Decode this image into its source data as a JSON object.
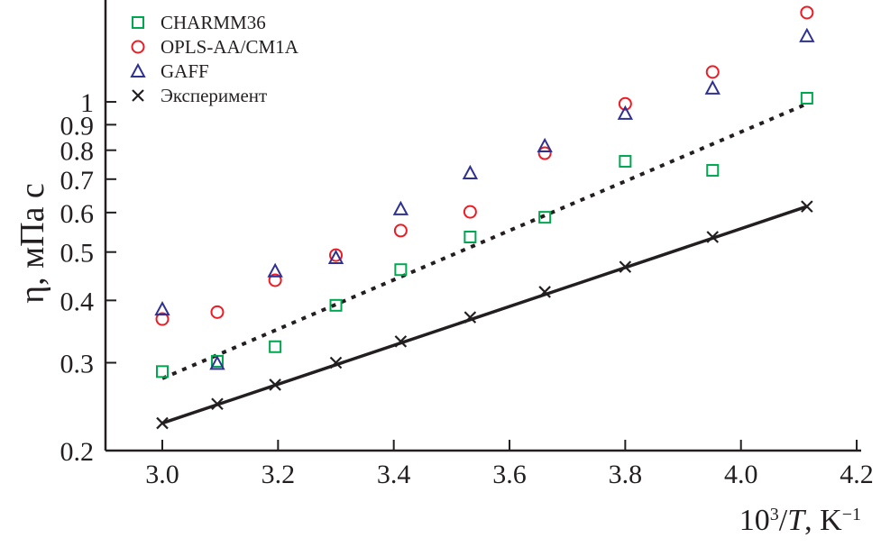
{
  "chart_data": {
    "type": "scatter",
    "title": "",
    "xlabel": "10³/T, K⁻¹",
    "ylabel": "η, мПа с",
    "xlim": [
      2.9,
      4.2
    ],
    "ylim": [
      0.2,
      1.6
    ],
    "yscale": "log",
    "x_ticks": [
      3.0,
      3.2,
      3.4,
      3.6,
      3.8,
      4.0,
      4.2
    ],
    "x_tick_labels": [
      "3.0",
      "3.2",
      "3.4",
      "3.6",
      "3.8",
      "4.0",
      "4.2"
    ],
    "y_ticks": [
      0.2,
      0.3,
      0.4,
      0.5,
      0.6,
      0.7,
      0.8,
      0.9,
      1.0
    ],
    "y_tick_labels": [
      "0.2",
      "0.3",
      "0.4",
      "0.5",
      "0.6",
      "0.7",
      "0.8",
      "0.9",
      "1"
    ],
    "legend_position": "top-left",
    "x": [
      3.0,
      3.095,
      3.195,
      3.3,
      3.412,
      3.532,
      3.661,
      3.8,
      3.951,
      4.114
    ],
    "series": [
      {
        "name": "CHARMM36",
        "marker": "square",
        "color": "#00a650",
        "values": [
          0.288,
          0.302,
          0.323,
          0.391,
          0.461,
          0.536,
          0.587,
          0.76,
          0.729,
          1.017
        ]
      },
      {
        "name": "OPLS-AA/CM1A",
        "marker": "circle",
        "color": "#ed1c24",
        "values": [
          0.367,
          0.379,
          0.439,
          0.493,
          0.552,
          0.602,
          0.789,
          0.991,
          1.148,
          1.51
        ]
      },
      {
        "name": "GAFF",
        "marker": "triangle",
        "color": "#2e3192",
        "values": [
          0.384,
          0.299,
          0.458,
          0.487,
          0.61,
          0.72,
          0.816,
          0.948,
          1.065,
          1.356
        ]
      },
      {
        "name": "Эксперимент",
        "marker": "cross",
        "color": "#231f20",
        "values": [
          0.227,
          0.248,
          0.271,
          0.3,
          0.331,
          0.37,
          0.416,
          0.467,
          0.536,
          0.617
        ]
      }
    ],
    "fit_lines": [
      {
        "name": "CHARMM36 fit",
        "style": "dotted",
        "x": [
          3.0,
          4.114
        ],
        "values": [
          0.279,
          0.991
        ]
      },
      {
        "name": "Эксперимент fit",
        "style": "solid",
        "x": [
          3.0,
          4.114
        ],
        "values": [
          0.227,
          0.617
        ]
      }
    ]
  }
}
